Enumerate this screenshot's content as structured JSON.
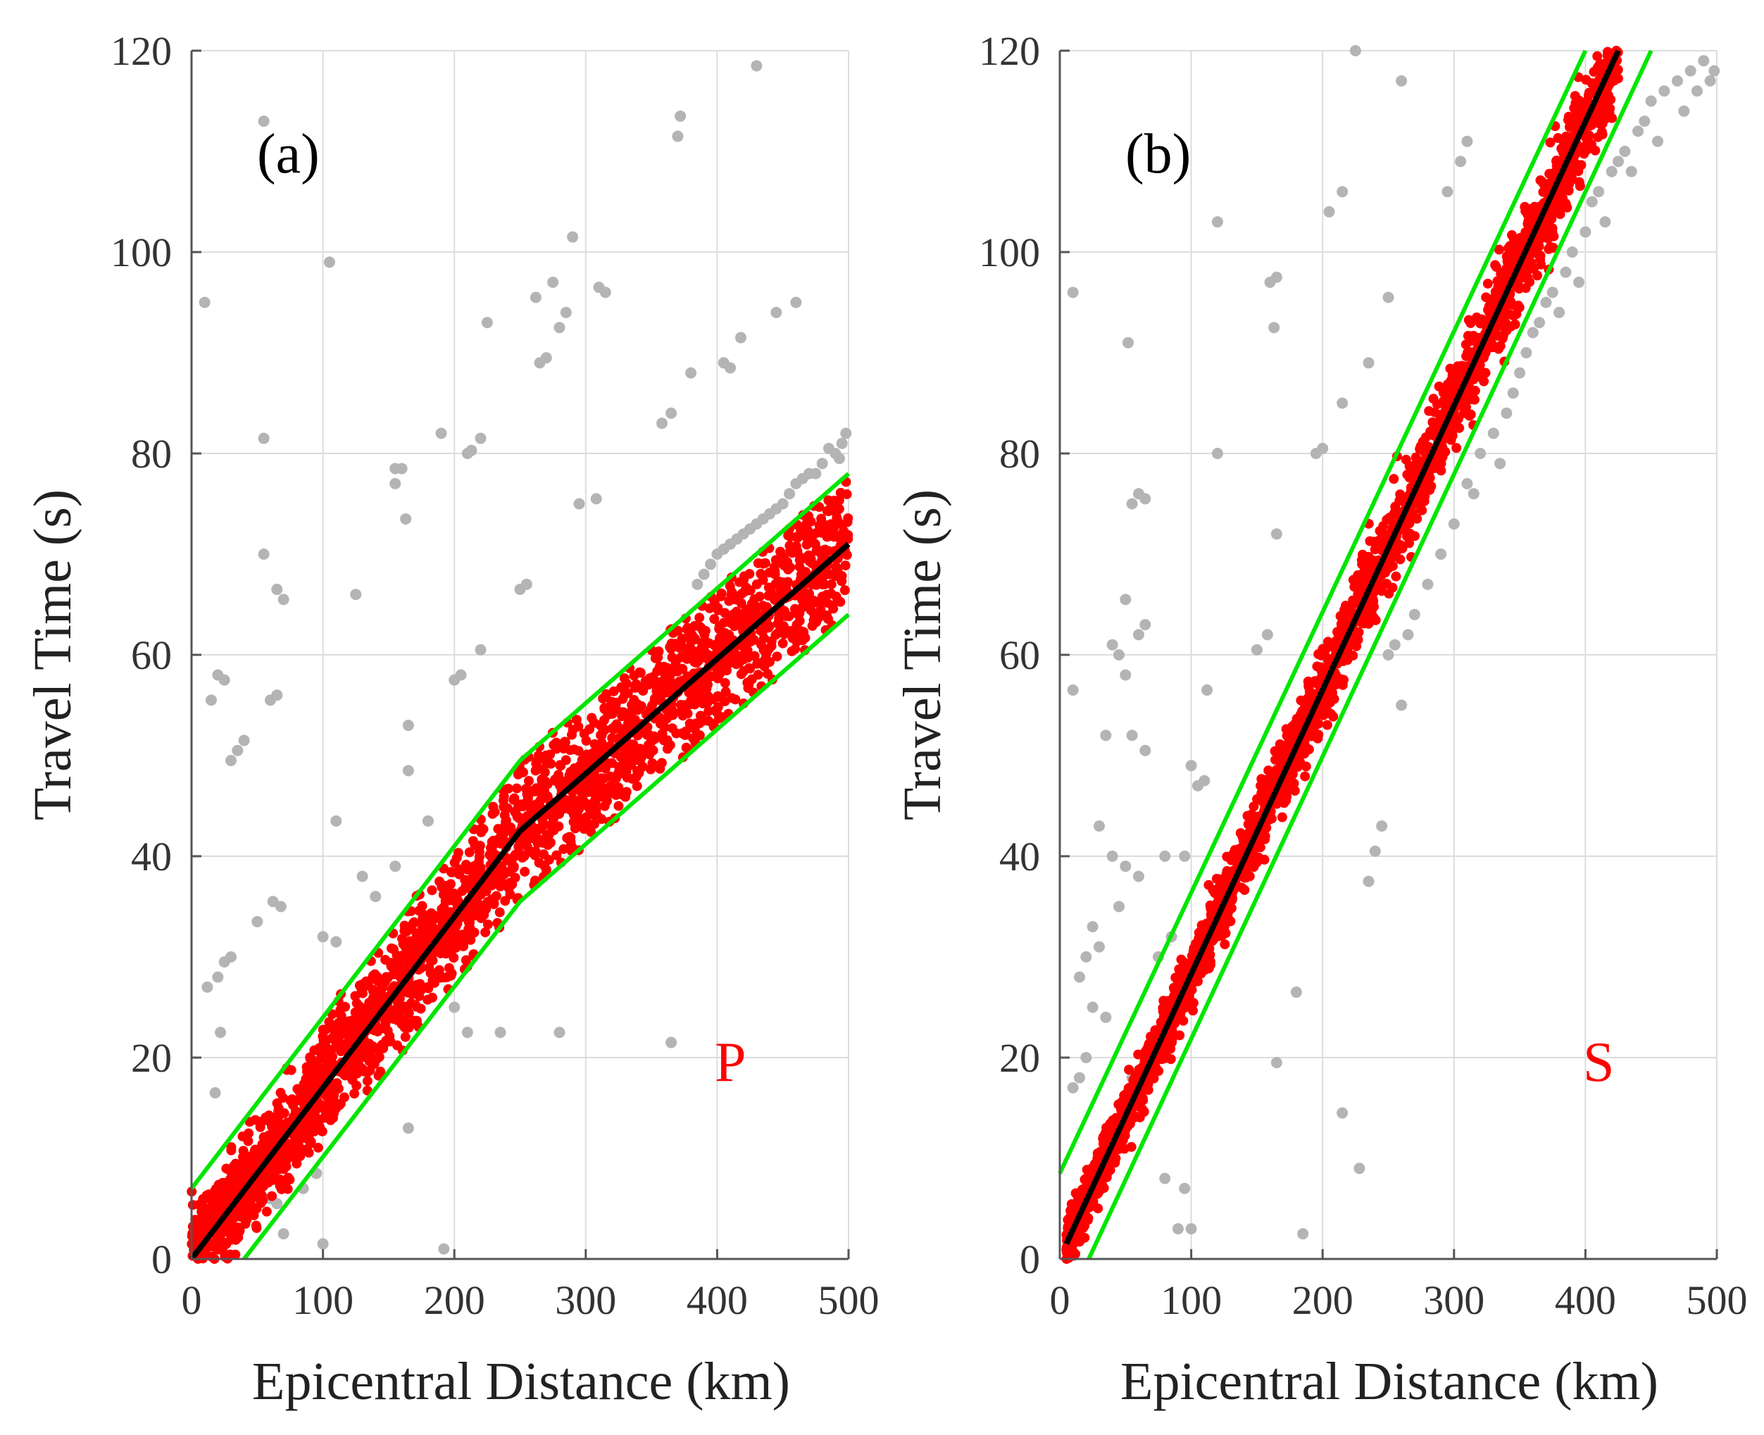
{
  "figure": {
    "colors": {
      "picked": "#ff0000",
      "outlier": "#b4b4b4",
      "fit": "#000000",
      "window": "#00e600"
    }
  },
  "chart_data": [
    {
      "type": "scatter",
      "panel_label": "(a)",
      "phase_label": "P",
      "xlabel": "Epicentral Distance (km)",
      "ylabel": "Travel Time (s)",
      "xlim": [
        0,
        500
      ],
      "ylim": [
        0,
        120
      ],
      "xticks": [
        "0",
        "100",
        "200",
        "300",
        "400",
        "500"
      ],
      "yticks": [
        "0",
        "20",
        "40",
        "60",
        "80",
        "100",
        "120"
      ],
      "grid": true,
      "fit_line": {
        "x": [
          0,
          250,
          500
        ],
        "y": [
          0,
          42.5,
          71
        ]
      },
      "window_upper": {
        "x": [
          0,
          250,
          500
        ],
        "y": [
          7,
          49.5,
          78
        ]
      },
      "window_lower": {
        "x": [
          40,
          250,
          500
        ],
        "y": [
          0,
          35.5,
          64
        ]
      },
      "picked_band": {
        "x_range": [
          0,
          500
        ],
        "spread": 3.5
      },
      "outliers": [
        [
          10,
          95
        ],
        [
          105,
          99
        ],
        [
          55,
          113
        ],
        [
          372,
          113.5
        ],
        [
          370,
          111.5
        ],
        [
          430,
          118.5
        ],
        [
          290,
          101.5
        ],
        [
          275,
          97
        ],
        [
          262,
          95.5
        ],
        [
          310,
          96.5
        ],
        [
          315,
          96
        ],
        [
          445,
          94
        ],
        [
          460,
          95
        ],
        [
          225,
          93
        ],
        [
          280,
          92.5
        ],
        [
          285,
          94
        ],
        [
          418,
          91.5
        ],
        [
          265,
          89
        ],
        [
          270,
          89.5
        ],
        [
          405,
          89
        ],
        [
          410,
          88.5
        ],
        [
          380,
          88
        ],
        [
          365,
          84
        ],
        [
          358,
          83
        ],
        [
          190,
          82
        ],
        [
          220,
          81.5
        ],
        [
          210,
          80
        ],
        [
          213,
          80.3
        ],
        [
          55,
          81.5
        ],
        [
          155,
          78.5
        ],
        [
          160,
          78.5
        ],
        [
          155,
          77
        ],
        [
          163,
          73.5
        ],
        [
          295,
          75
        ],
        [
          308,
          75.5
        ],
        [
          55,
          70
        ],
        [
          65,
          66.5
        ],
        [
          70,
          65.5
        ],
        [
          125,
          66
        ],
        [
          250,
          66.5
        ],
        [
          255,
          67
        ],
        [
          165,
          53
        ],
        [
          200,
          57.5
        ],
        [
          205,
          58
        ],
        [
          220,
          60.5
        ],
        [
          20,
          58
        ],
        [
          25,
          57.5
        ],
        [
          15,
          55.5
        ],
        [
          60,
          55.5
        ],
        [
          65,
          56
        ],
        [
          40,
          51.5
        ],
        [
          35,
          50.5
        ],
        [
          30,
          49.5
        ],
        [
          110,
          43.5
        ],
        [
          165,
          48.5
        ],
        [
          180,
          43.5
        ],
        [
          130,
          38
        ],
        [
          140,
          36
        ],
        [
          155,
          39
        ],
        [
          62,
          35.5
        ],
        [
          68,
          35
        ],
        [
          50,
          33.5
        ],
        [
          110,
          31.5
        ],
        [
          100,
          32
        ],
        [
          25,
          29.5
        ],
        [
          30,
          30
        ],
        [
          20,
          28
        ],
        [
          12,
          27
        ],
        [
          200,
          25
        ],
        [
          210,
          22.5
        ],
        [
          235,
          22.5
        ],
        [
          280,
          22.5
        ],
        [
          365,
          21.5
        ],
        [
          22,
          22.5
        ],
        [
          18,
          16.5
        ],
        [
          165,
          13
        ],
        [
          95,
          8.5
        ],
        [
          85,
          7
        ],
        [
          100,
          1.5
        ],
        [
          60,
          6
        ],
        [
          192,
          1
        ],
        [
          65,
          5.5
        ],
        [
          70,
          2.5
        ],
        [
          455,
          76
        ],
        [
          460,
          77
        ],
        [
          470,
          78
        ],
        [
          480,
          79
        ],
        [
          490,
          80
        ],
        [
          495,
          81
        ],
        [
          498,
          82
        ],
        [
          485,
          80.5
        ],
        [
          475,
          78
        ],
        [
          450,
          75
        ],
        [
          440,
          74
        ],
        [
          430,
          73
        ],
        [
          420,
          72
        ],
        [
          410,
          71
        ],
        [
          400,
          70
        ],
        [
          395,
          69
        ],
        [
          390,
          68
        ],
        [
          385,
          67
        ],
        [
          445,
          74.5
        ],
        [
          435,
          73.5
        ],
        [
          425,
          72.5
        ],
        [
          415,
          71.5
        ],
        [
          405,
          70.5
        ],
        [
          465,
          77.5
        ],
        [
          493,
          79.5
        ]
      ]
    },
    {
      "type": "scatter",
      "panel_label": "(b)",
      "phase_label": "S",
      "xlabel": "Epicentral Distance (km)",
      "ylabel": "Travel Time (s)",
      "xlim": [
        0,
        500
      ],
      "ylim": [
        0,
        120
      ],
      "xticks": [
        "0",
        "100",
        "200",
        "300",
        "400",
        "500"
      ],
      "yticks": [
        "0",
        "20",
        "40",
        "60",
        "80",
        "100",
        "120"
      ],
      "grid": true,
      "fit_line": {
        "x": [
          5,
          425
        ],
        "y": [
          1.5,
          120
        ]
      },
      "window_upper": {
        "x": [
          0,
          400
        ],
        "y": [
          8.5,
          120
        ]
      },
      "window_lower": {
        "x": [
          22,
          450
        ],
        "y": [
          0,
          120
        ]
      },
      "picked_band": {
        "x_range": [
          5,
          425
        ],
        "spread": 1.8
      },
      "outliers": [
        [
          10,
          96
        ],
        [
          52,
          91
        ],
        [
          120,
          103
        ],
        [
          205,
          104
        ],
        [
          215,
          106
        ],
        [
          310,
          111
        ],
        [
          305,
          109
        ],
        [
          295,
          106
        ],
        [
          225,
          120
        ],
        [
          260,
          117
        ],
        [
          250,
          95.5
        ],
        [
          235,
          89
        ],
        [
          215,
          85
        ],
        [
          160,
          97
        ],
        [
          165,
          97.5
        ],
        [
          163,
          92.5
        ],
        [
          120,
          80
        ],
        [
          195,
          80
        ],
        [
          200,
          80.5
        ],
        [
          165,
          72
        ],
        [
          60,
          76
        ],
        [
          65,
          75.5
        ],
        [
          55,
          75
        ],
        [
          50,
          65.5
        ],
        [
          40,
          61
        ],
        [
          45,
          60
        ],
        [
          50,
          58
        ],
        [
          65,
          63
        ],
        [
          60,
          62
        ],
        [
          112,
          56.5
        ],
        [
          10,
          56.5
        ],
        [
          55,
          52
        ],
        [
          35,
          52
        ],
        [
          65,
          50.5
        ],
        [
          100,
          49
        ],
        [
          105,
          47
        ],
        [
          110,
          47.5
        ],
        [
          150,
          60.5
        ],
        [
          158,
          62
        ],
        [
          30,
          43
        ],
        [
          40,
          40
        ],
        [
          50,
          39
        ],
        [
          60,
          38
        ],
        [
          45,
          35
        ],
        [
          25,
          33
        ],
        [
          30,
          31
        ],
        [
          20,
          30
        ],
        [
          15,
          28
        ],
        [
          25,
          25
        ],
        [
          35,
          24
        ],
        [
          20,
          20
        ],
        [
          15,
          18
        ],
        [
          10,
          17
        ],
        [
          55,
          18
        ],
        [
          80,
          40
        ],
        [
          95,
          40
        ],
        [
          85,
          32
        ],
        [
          75,
          30
        ],
        [
          165,
          19.5
        ],
        [
          180,
          26.5
        ],
        [
          215,
          14.5
        ],
        [
          80,
          8
        ],
        [
          95,
          7
        ],
        [
          90,
          3
        ],
        [
          100,
          3
        ],
        [
          185,
          2.5
        ],
        [
          228,
          9
        ],
        [
          240,
          40.5
        ],
        [
          235,
          37.5
        ],
        [
          245,
          43
        ],
        [
          250,
          60
        ],
        [
          255,
          61
        ],
        [
          260,
          55
        ],
        [
          265,
          62
        ],
        [
          270,
          64
        ],
        [
          280,
          67
        ],
        [
          290,
          70
        ],
        [
          300,
          73
        ],
        [
          310,
          77
        ],
        [
          315,
          76
        ],
        [
          320,
          80
        ],
        [
          330,
          82
        ],
        [
          335,
          79
        ],
        [
          340,
          84
        ],
        [
          345,
          86
        ],
        [
          350,
          88
        ],
        [
          355,
          90
        ],
        [
          360,
          92
        ],
        [
          365,
          93
        ],
        [
          370,
          95
        ],
        [
          375,
          96
        ],
        [
          380,
          94
        ],
        [
          385,
          98
        ],
        [
          390,
          100
        ],
        [
          395,
          97
        ],
        [
          400,
          102
        ],
        [
          405,
          105
        ],
        [
          410,
          106
        ],
        [
          415,
          103
        ],
        [
          420,
          108
        ],
        [
          425,
          109
        ],
        [
          430,
          110
        ],
        [
          440,
          112
        ],
        [
          445,
          113
        ],
        [
          450,
          115
        ],
        [
          460,
          116
        ],
        [
          470,
          117
        ],
        [
          480,
          118
        ],
        [
          490,
          119
        ],
        [
          495,
          117
        ],
        [
          498,
          118
        ],
        [
          485,
          116
        ],
        [
          475,
          114
        ],
        [
          455,
          111
        ],
        [
          435,
          108
        ]
      ]
    }
  ]
}
